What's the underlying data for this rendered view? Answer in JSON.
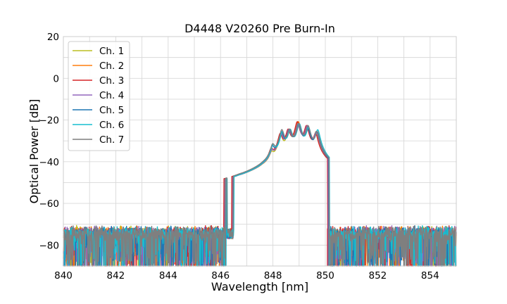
{
  "chart_data": {
    "type": "line",
    "title": "D4448 V20260 Pre Burn-In",
    "xlabel": "Wavelength [nm]",
    "ylabel": "Optical Power [dB]",
    "xlim": [
      840,
      855
    ],
    "ylim": [
      -90,
      20
    ],
    "xticks": [
      840,
      842,
      844,
      846,
      848,
      850,
      852,
      854
    ],
    "yticks": [
      -80,
      -60,
      -40,
      -20,
      0,
      20
    ],
    "grid": true,
    "legend_position": "top-left",
    "noise_floor_db": -80,
    "series": [
      {
        "name": "Ch. 1",
        "color": "#bcbd22",
        "peak_offset_nm": 0.0,
        "peaks_db": [
          -62,
          -57,
          -38,
          -28,
          -26,
          -21,
          -23,
          -26
        ]
      },
      {
        "name": "Ch. 2",
        "color": "#ff7f0e",
        "peak_offset_nm": 0.02,
        "peaks_db": [
          -62,
          -57,
          -37,
          -27,
          -25,
          -21,
          -23,
          -26
        ]
      },
      {
        "name": "Ch. 3",
        "color": "#d62728",
        "peak_offset_nm": -0.02,
        "peaks_db": [
          -62,
          -56,
          -36,
          -27,
          -25,
          -21,
          -23,
          -27
        ]
      },
      {
        "name": "Ch. 4",
        "color": "#9467bd",
        "peak_offset_nm": 0.01,
        "peaks_db": [
          -63,
          -57,
          -37,
          -27,
          -25,
          -22,
          -23,
          -26
        ]
      },
      {
        "name": "Ch. 5",
        "color": "#1f77b4",
        "peak_offset_nm": 0.03,
        "peaks_db": [
          -62,
          -56,
          -34,
          -26,
          -25,
          -22,
          -24,
          -26
        ]
      },
      {
        "name": "Ch. 6",
        "color": "#17becf",
        "peak_offset_nm": 0.06,
        "peaks_db": [
          -63,
          -56,
          -33,
          -26,
          -25,
          -22,
          -24,
          -25
        ]
      },
      {
        "name": "Ch. 7",
        "color": "#7f7f7f",
        "peak_offset_nm": 0.04,
        "peaks_db": [
          -63,
          -57,
          -33,
          -25,
          -25,
          -22,
          -23,
          -26
        ]
      }
    ],
    "comb_peak_wavelengths_nm": [
      846.7,
      847.6,
      847.95,
      848.3,
      848.6,
      848.95,
      849.3,
      849.65
    ]
  }
}
